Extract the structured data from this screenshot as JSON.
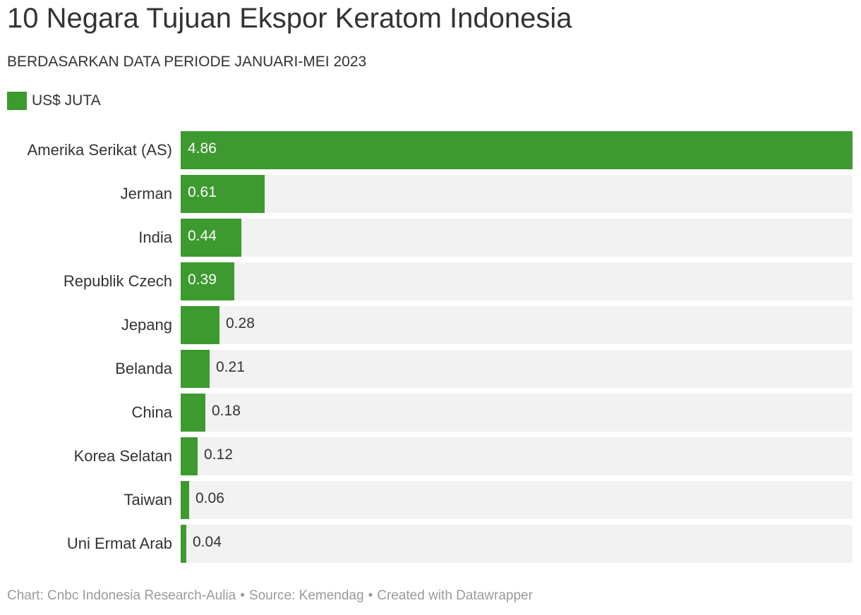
{
  "title": "10 Negara Tujuan Ekspor Keratom Indonesia",
  "subtitle": "BERDASARKAN DATA PERIODE JANUARI-MEI 2023",
  "legend": {
    "label": "US$ JUTA",
    "color": "#3d9a2f"
  },
  "colors": {
    "bar": "#3d9a2f",
    "track": "#f2f2f2",
    "label_inside": "#ffffff",
    "label_outside": "#333333"
  },
  "chart_data": {
    "type": "bar",
    "orientation": "horizontal",
    "categories": [
      "Amerika Serikat (AS)",
      "Jerman",
      "India",
      "Republik Czech",
      "Jepang",
      "Belanda",
      "China",
      "Korea Selatan",
      "Taiwan",
      "Uni Ermat Arab"
    ],
    "series": [
      {
        "name": "US$ JUTA",
        "values": [
          4.86,
          0.61,
          0.44,
          0.39,
          0.28,
          0.21,
          0.18,
          0.12,
          0.06,
          0.04
        ]
      }
    ],
    "value_labels": [
      "4.86",
      "0.61",
      "0.44",
      "0.39",
      "0.28",
      "0.21",
      "0.18",
      "0.12",
      "0.06",
      "0.04"
    ],
    "xlim": [
      0,
      4.86
    ],
    "grid": false,
    "legend_position": "top-left"
  },
  "footer": {
    "chart_credit": "Chart: Cnbc Indonesia Research-Aulia",
    "source": "Source: Kemendag",
    "created_with": "Created with Datawrapper",
    "separator": "•"
  }
}
